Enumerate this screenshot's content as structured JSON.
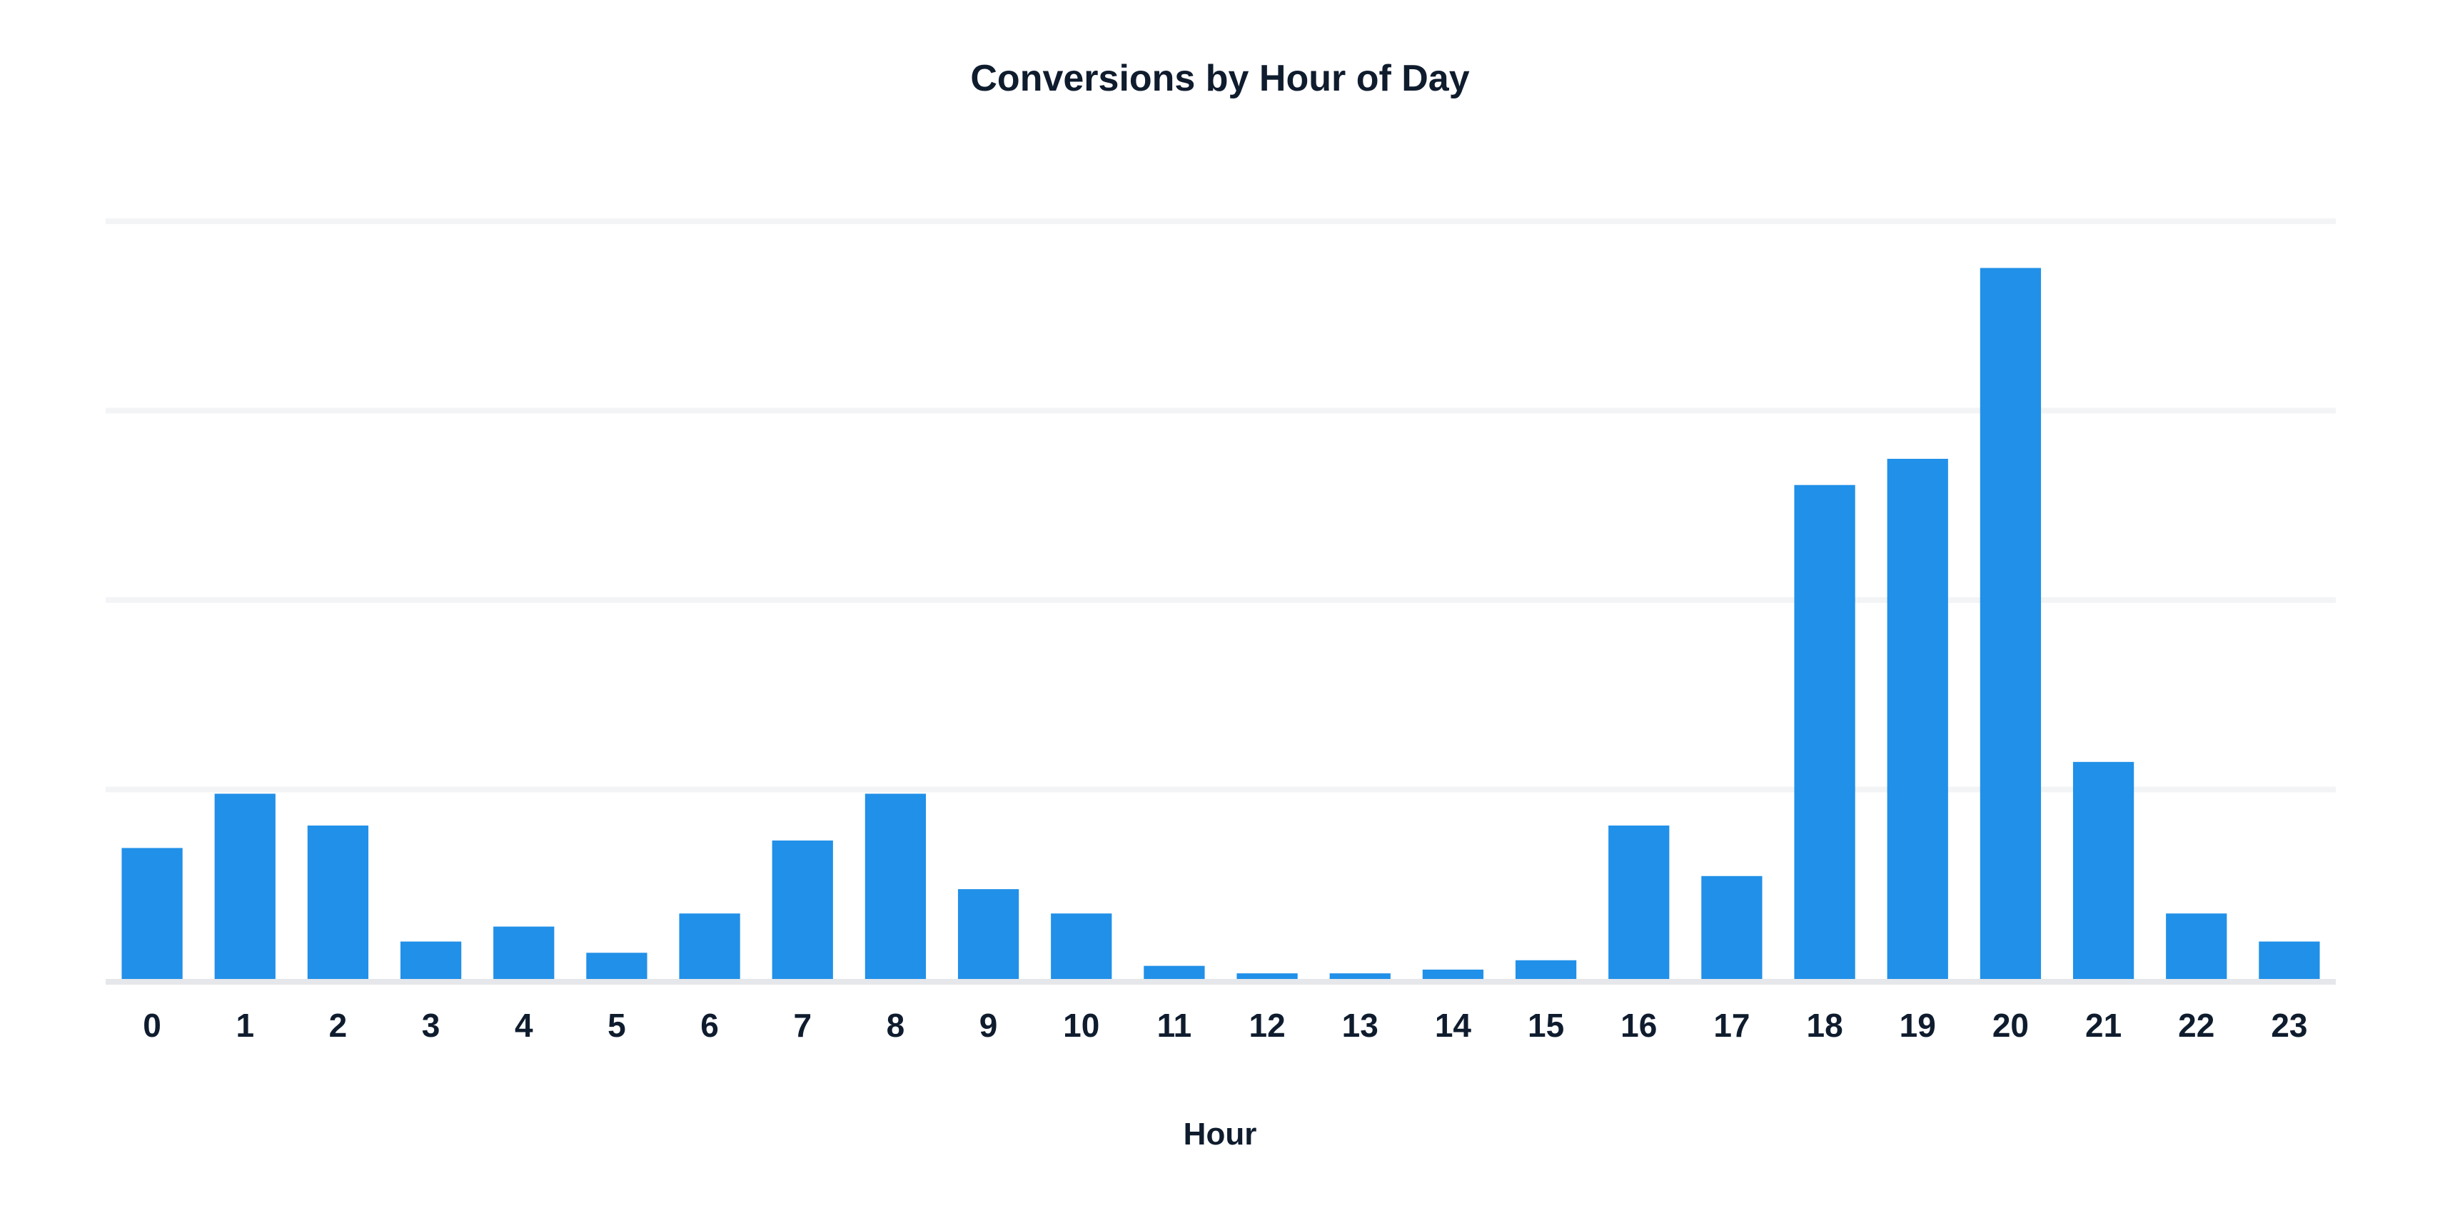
{
  "chart_data": {
    "type": "bar",
    "title": "Conversions by Hour of Day",
    "xlabel": "Hour",
    "ylabel": "",
    "categories": [
      "0",
      "1",
      "2",
      "3",
      "4",
      "5",
      "6",
      "7",
      "8",
      "9",
      "10",
      "11",
      "12",
      "13",
      "14",
      "15",
      "16",
      "17",
      "18",
      "19",
      "20",
      "21",
      "22",
      "23"
    ],
    "values": [
      70,
      99,
      82,
      20,
      28,
      14,
      35,
      74,
      99,
      48,
      35,
      7,
      3,
      3,
      5,
      10,
      82,
      55,
      264,
      278,
      380,
      116,
      35,
      20
    ],
    "ylim": [
      0,
      405
    ],
    "grid": true,
    "bar_color": "#2190e8",
    "grid_color": "#f3f4f6",
    "axis_color": "#e5e7eb",
    "text_color": "#0f1c2e"
  }
}
